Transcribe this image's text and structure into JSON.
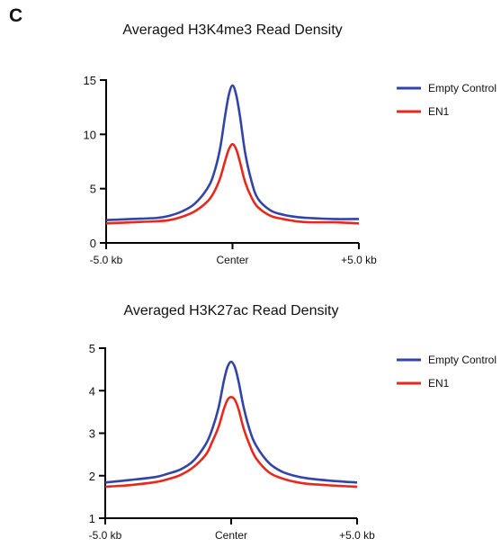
{
  "panel_label": "C",
  "colors": {
    "empty_control": "#3344a8",
    "en1": "#e8281c",
    "axis": "#000000"
  },
  "chart_data": [
    {
      "type": "line",
      "title": "Averaged H3K4me3 Read Density",
      "xlabel": "",
      "ylabel": "",
      "x_tick_labels": [
        "-5.0 kb",
        "Center",
        "+5.0 kb"
      ],
      "x": [
        -5.0,
        -4.0,
        -3.0,
        -2.5,
        -2.0,
        -1.5,
        -1.0,
        -0.75,
        -0.5,
        -0.3,
        -0.15,
        0.0,
        0.15,
        0.3,
        0.5,
        0.75,
        1.0,
        1.5,
        2.0,
        2.5,
        3.0,
        4.0,
        5.0
      ],
      "xlim": [
        -5.0,
        5.0
      ],
      "ylim": [
        0,
        15
      ],
      "yticks": [
        0,
        5,
        10,
        15
      ],
      "legend_position": "top-right",
      "series": [
        {
          "name": "Empty Control",
          "color": "#3344a8",
          "values": [
            2.1,
            2.2,
            2.3,
            2.5,
            2.9,
            3.6,
            5.0,
            6.3,
            8.6,
            11.6,
            13.6,
            14.5,
            13.6,
            11.6,
            8.3,
            5.7,
            4.1,
            3.0,
            2.6,
            2.4,
            2.3,
            2.2,
            2.2
          ]
        },
        {
          "name": "EN1",
          "color": "#e8281c",
          "values": [
            1.8,
            1.9,
            2.0,
            2.1,
            2.4,
            2.9,
            3.8,
            4.6,
            5.9,
            7.5,
            8.6,
            9.1,
            8.6,
            7.4,
            5.6,
            4.2,
            3.3,
            2.5,
            2.2,
            2.0,
            1.9,
            1.9,
            1.8
          ]
        }
      ]
    },
    {
      "type": "line",
      "title": "Averaged H3K27ac Read Density",
      "xlabel": "",
      "ylabel": "",
      "x_tick_labels": [
        "-5.0 kb",
        "Center",
        "+5.0 kb"
      ],
      "x": [
        -5.0,
        -4.0,
        -3.0,
        -2.5,
        -2.0,
        -1.5,
        -1.0,
        -0.75,
        -0.5,
        -0.3,
        -0.15,
        0.0,
        0.15,
        0.3,
        0.5,
        0.75,
        1.0,
        1.5,
        2.0,
        2.5,
        3.0,
        4.0,
        5.0
      ],
      "xlim": [
        -5.0,
        5.0
      ],
      "ylim": [
        1,
        5
      ],
      "yticks": [
        1,
        2,
        3,
        4,
        5
      ],
      "legend_position": "top-right",
      "series": [
        {
          "name": "Empty Control",
          "color": "#3344a8",
          "values": [
            1.84,
            1.9,
            1.97,
            2.05,
            2.15,
            2.35,
            2.75,
            3.1,
            3.6,
            4.2,
            4.55,
            4.68,
            4.55,
            4.2,
            3.6,
            3.05,
            2.7,
            2.3,
            2.1,
            2.0,
            1.94,
            1.88,
            1.84
          ]
        },
        {
          "name": "EN1",
          "color": "#e8281c",
          "values": [
            1.74,
            1.78,
            1.85,
            1.92,
            2.02,
            2.2,
            2.5,
            2.8,
            3.15,
            3.55,
            3.78,
            3.85,
            3.78,
            3.55,
            3.1,
            2.7,
            2.4,
            2.08,
            1.94,
            1.86,
            1.81,
            1.77,
            1.74
          ]
        }
      ]
    }
  ]
}
